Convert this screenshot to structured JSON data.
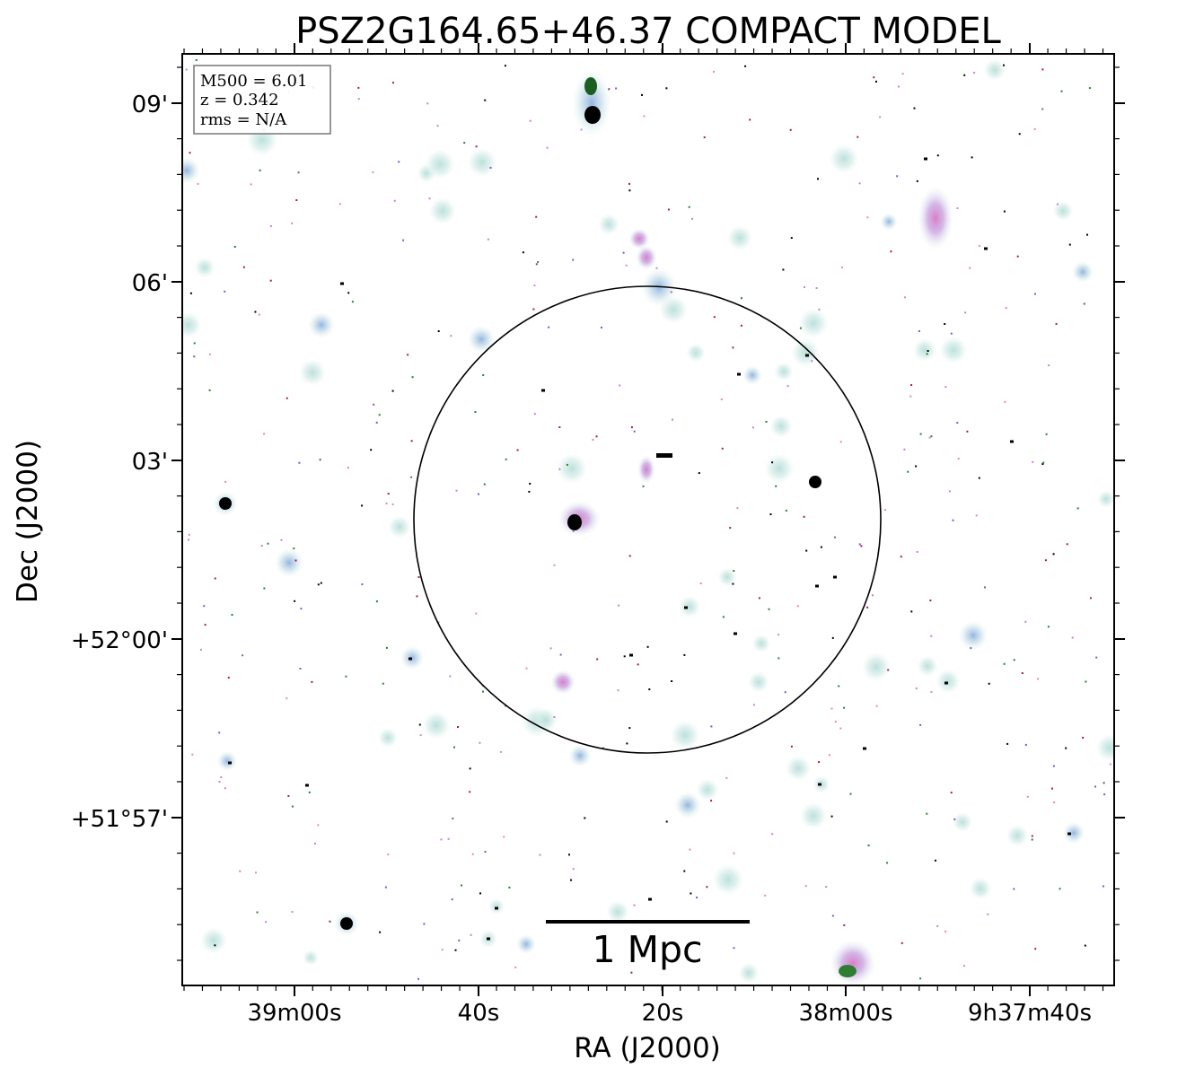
{
  "title": "PSZ2G164.65+46.37 COMPACT MODEL",
  "info_box": {
    "line1": "M500 = 6.01",
    "line2": "z = 0.342",
    "line3": "rms = N/A"
  },
  "axes": {
    "xlabel": "RA (J2000)",
    "ylabel": "Dec (J2000)",
    "x_ticks": [
      "39m00s",
      "40s",
      "20s",
      "38m00s",
      "9h37m40s"
    ],
    "y_ticks": [
      "09'",
      "06'",
      "03'",
      "+52°00'",
      "+51°57'"
    ]
  },
  "scalebar": {
    "label": "1 Mpc"
  },
  "colors": {
    "halo": "#cfe9e6",
    "halo_core": "#a9c9e8",
    "magenta_source": "#c77fd1",
    "pink_source": "#e08ab0",
    "green_core": "#2e7d32",
    "dark_core": "#000000",
    "circle": "#000000",
    "frame": "#000000"
  }
}
